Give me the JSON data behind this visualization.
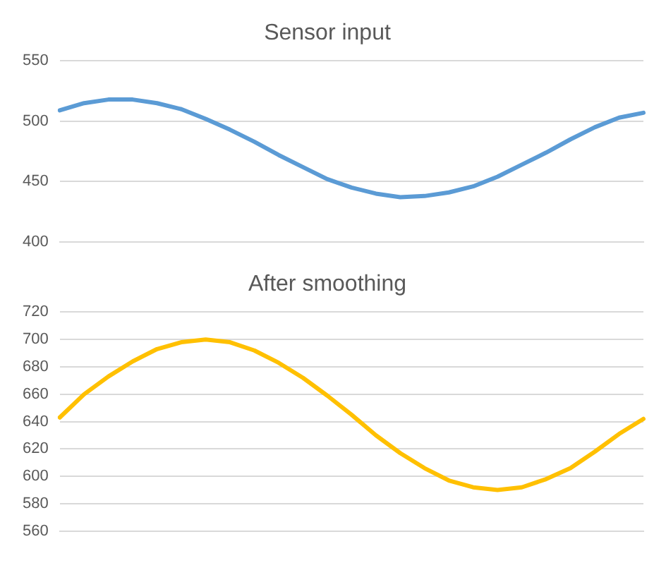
{
  "chart_data": [
    {
      "type": "line",
      "title": "Sensor input",
      "categories": [
        null,
        null,
        null,
        null,
        null,
        null,
        null,
        null,
        null,
        null,
        null,
        null,
        null,
        null,
        null,
        null,
        null,
        null,
        null,
        null,
        null,
        null,
        null,
        null,
        null
      ],
      "series": [
        {
          "color": "#5b9bd5",
          "values": [
            509,
            515,
            518,
            518,
            515,
            510,
            502,
            493,
            483,
            472,
            462,
            452,
            445,
            440,
            437,
            438,
            441,
            446,
            454,
            464,
            474,
            485,
            495,
            503,
            507
          ]
        }
      ],
      "ylim": [
        400,
        550
      ],
      "yticks": [
        400,
        450,
        500,
        550
      ],
      "grid": "y",
      "tick_labels": "y",
      "marker": "none",
      "line_style": "solid",
      "legend": false
    },
    {
      "type": "line",
      "title": "After smoothing",
      "categories": [
        null,
        null,
        null,
        null,
        null,
        null,
        null,
        null,
        null,
        null,
        null,
        null,
        null,
        null,
        null,
        null,
        null,
        null,
        null,
        null,
        null,
        null,
        null,
        null,
        null
      ],
      "series": [
        {
          "color": "#ffc000",
          "values": [
            643,
            660,
            673,
            684,
            693,
            698,
            700,
            698,
            692,
            683,
            672,
            659,
            645,
            630,
            617,
            606,
            597,
            592,
            590,
            592,
            598,
            606,
            618,
            631,
            642
          ]
        }
      ],
      "ylim": [
        560,
        720
      ],
      "yticks": [
        560,
        580,
        600,
        620,
        640,
        660,
        680,
        700,
        720
      ],
      "grid": "y",
      "tick_labels": "y",
      "marker": "none",
      "line_style": "solid",
      "legend": false
    }
  ]
}
